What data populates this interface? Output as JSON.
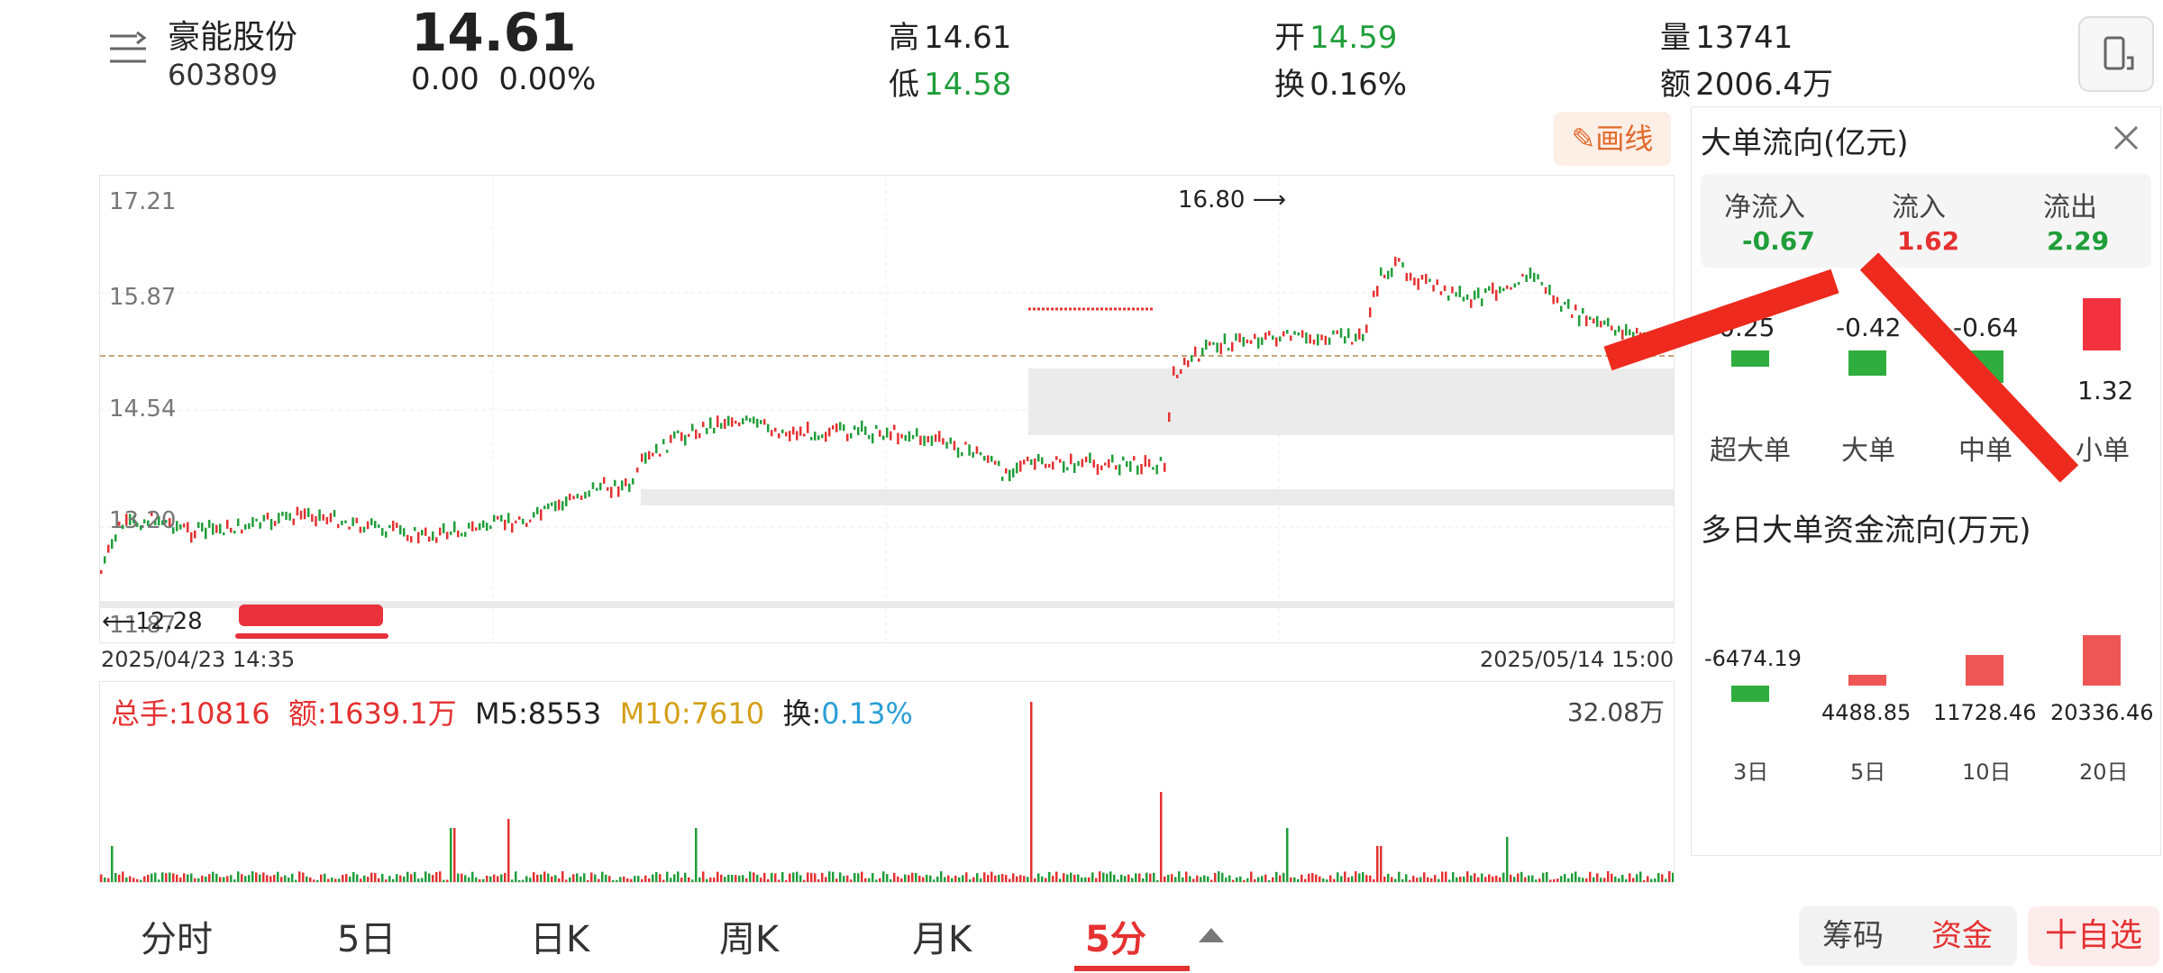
{
  "header": {
    "stock_name": "豪能股份",
    "stock_code": "603809",
    "price": "14.61",
    "change": "0.00",
    "change_pct": "0.00%",
    "high_label": "高",
    "high": "14.61",
    "low_label": "低",
    "low": "14.58",
    "open_label": "开",
    "open": "14.59",
    "turnover_label": "换",
    "turnover": "0.16%",
    "volume_label": "量",
    "volume": "13741",
    "amount_label": "额",
    "amount": "2006.4万"
  },
  "draw_button": "画线",
  "chart": {
    "y_labels": [
      "17.21",
      "15.87",
      "14.54",
      "13.20",
      "11.87"
    ],
    "high_marker": "16.80",
    "low_marker": "12.28",
    "start_date": "2025/04/23 14:35",
    "end_date": "2025/05/14 15:00"
  },
  "volume_panel": {
    "total_label": "总手:10816",
    "amount_label": "额:1639.1万",
    "m5": "M5:8553",
    "m10": "M10:7610",
    "turnover_label": "换:",
    "turnover": "0.13%",
    "max_vol": "32.08万"
  },
  "tabs": [
    "分时",
    "5日",
    "日K",
    "周K",
    "月K",
    "5分"
  ],
  "bottom_buttons": {
    "chips": "筹码",
    "funds": "资金",
    "add_watch": "十自选"
  },
  "flow_panel": {
    "title": "大单流向(亿元)",
    "net_in_label": "净流入",
    "net_in": "-0.67",
    "in_label": "流入",
    "in": "1.62",
    "out_label": "流出",
    "out": "2.29",
    "bars": [
      {
        "label": "超大单",
        "value": "-0.25"
      },
      {
        "label": "大单",
        "value": "-0.42"
      },
      {
        "label": "中单",
        "value": "-0.64"
      },
      {
        "label": "小单",
        "value": "1.32"
      }
    ],
    "multi_title": "多日大单资金流向(万元)",
    "multi_bars": [
      {
        "label": "3日",
        "value": "-6474.19"
      },
      {
        "label": "5日",
        "value": "4488.85"
      },
      {
        "label": "10日",
        "value": "11728.46"
      },
      {
        "label": "20日",
        "value": "20336.46"
      }
    ]
  },
  "colors": {
    "up": "#e53131",
    "down": "#1f9e3a",
    "accent": "#e53131"
  }
}
